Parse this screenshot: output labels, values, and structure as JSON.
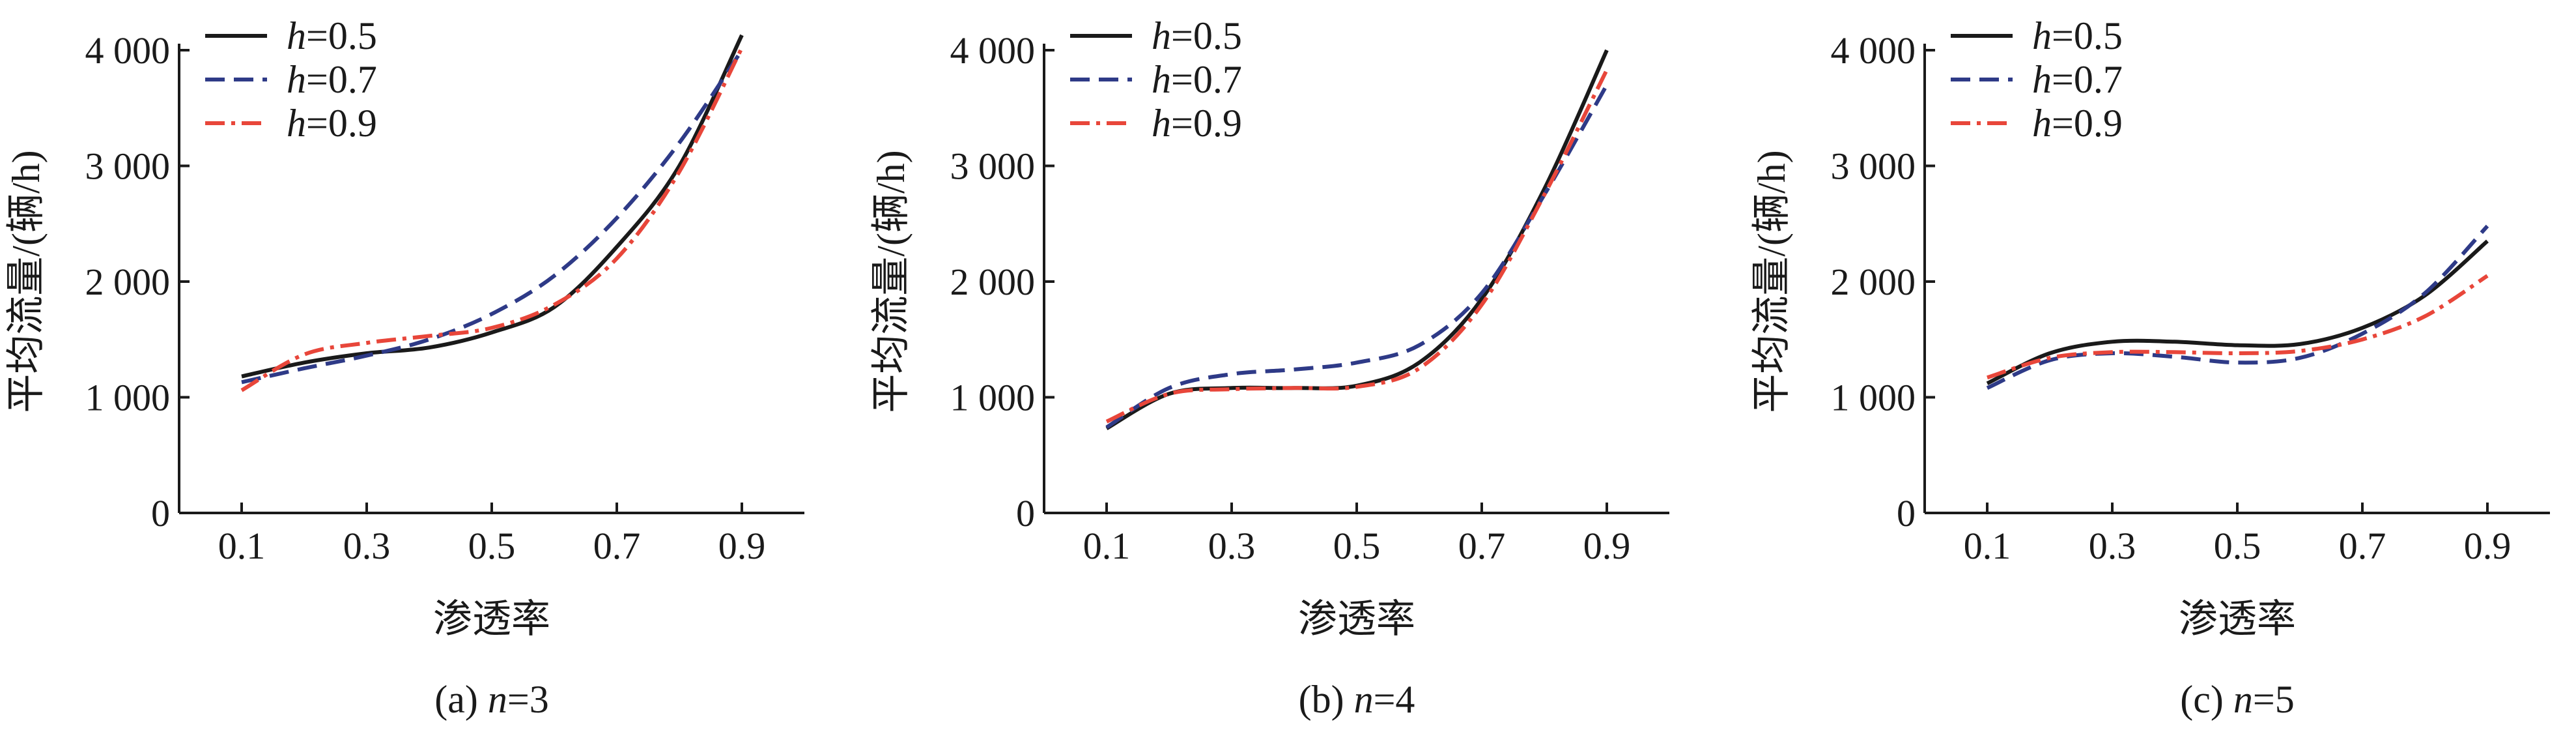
{
  "chart_data": [
    {
      "type": "line",
      "caption_prefix": "(a) ",
      "caption_var": "n",
      "caption_rest": "=3",
      "xlabel": "渗透率",
      "ylabel": "平均流量/(辆/h)",
      "xlim": [
        0.0,
        1.0
      ],
      "ylim": [
        0,
        4000
      ],
      "x_ticks": [
        0.1,
        0.3,
        0.5,
        0.7,
        0.9
      ],
      "x_tick_labels": [
        "0.1",
        "0.3",
        "0.5",
        "0.7",
        "0.9"
      ],
      "y_ticks": [
        0,
        1000,
        2000,
        3000,
        4000
      ],
      "y_tick_labels": [
        "0",
        "1 000",
        "2 000",
        "3 000",
        "4 000"
      ],
      "x": [
        0.1,
        0.2,
        0.3,
        0.4,
        0.5,
        0.6,
        0.7,
        0.8,
        0.9
      ],
      "series": [
        {
          "name_var": "h",
          "name_rest": "=0.5",
          "color": "#1a1a1a",
          "dash": "solid",
          "values": [
            1180,
            1300,
            1380,
            1430,
            1560,
            1780,
            2300,
            3000,
            4130
          ]
        },
        {
          "name_var": "h",
          "name_rest": "=0.7",
          "color": "#2e3a87",
          "dash": "dashed",
          "values": [
            1130,
            1250,
            1360,
            1500,
            1720,
            2050,
            2550,
            3200,
            4000
          ]
        },
        {
          "name_var": "h",
          "name_rest": "=0.9",
          "color": "#e8463a",
          "dash": "dashdot",
          "values": [
            1060,
            1370,
            1470,
            1530,
            1600,
            1800,
            2200,
            2950,
            4020
          ]
        }
      ]
    },
    {
      "type": "line",
      "caption_prefix": "(b) ",
      "caption_var": "n",
      "caption_rest": "=4",
      "xlabel": "渗透率",
      "ylabel": "平均流量/(辆/h)",
      "xlim": [
        0.0,
        1.0
      ],
      "ylim": [
        0,
        4000
      ],
      "x_ticks": [
        0.1,
        0.3,
        0.5,
        0.7,
        0.9
      ],
      "x_tick_labels": [
        "0.1",
        "0.3",
        "0.5",
        "0.7",
        "0.9"
      ],
      "y_ticks": [
        0,
        1000,
        2000,
        3000,
        4000
      ],
      "y_tick_labels": [
        "0",
        "1 000",
        "2 000",
        "3 000",
        "4 000"
      ],
      "x": [
        0.1,
        0.2,
        0.3,
        0.4,
        0.5,
        0.6,
        0.7,
        0.8,
        0.9
      ],
      "series": [
        {
          "name_var": "h",
          "name_rest": "=0.5",
          "color": "#1a1a1a",
          "dash": "solid",
          "values": [
            730,
            1030,
            1080,
            1080,
            1100,
            1300,
            1850,
            2800,
            4000
          ]
        },
        {
          "name_var": "h",
          "name_rest": "=0.7",
          "color": "#2e3a87",
          "dash": "dashed",
          "values": [
            740,
            1080,
            1200,
            1240,
            1300,
            1450,
            1900,
            2750,
            3700
          ]
        },
        {
          "name_var": "h",
          "name_rest": "=0.9",
          "color": "#e8463a",
          "dash": "dashdot",
          "values": [
            790,
            1030,
            1070,
            1080,
            1090,
            1250,
            1800,
            2750,
            3830
          ]
        }
      ]
    },
    {
      "type": "line",
      "caption_prefix": "(c) ",
      "caption_var": "n",
      "caption_rest": "=5",
      "xlabel": "渗透率",
      "ylabel": "平均流量/(辆/h)",
      "xlim": [
        0.0,
        1.0
      ],
      "ylim": [
        0,
        4000
      ],
      "x_ticks": [
        0.1,
        0.3,
        0.5,
        0.7,
        0.9
      ],
      "x_tick_labels": [
        "0.1",
        "0.3",
        "0.5",
        "0.7",
        "0.9"
      ],
      "y_ticks": [
        0,
        1000,
        2000,
        3000,
        4000
      ],
      "y_tick_labels": [
        "0",
        "1 000",
        "2 000",
        "3 000",
        "4 000"
      ],
      "x": [
        0.1,
        0.2,
        0.3,
        0.4,
        0.5,
        0.6,
        0.7,
        0.8,
        0.9
      ],
      "series": [
        {
          "name_var": "h",
          "name_rest": "=0.5",
          "color": "#1a1a1a",
          "dash": "solid",
          "values": [
            1120,
            1380,
            1480,
            1480,
            1450,
            1460,
            1600,
            1880,
            2350
          ]
        },
        {
          "name_var": "h",
          "name_rest": "=0.7",
          "color": "#2e3a87",
          "dash": "dashed",
          "values": [
            1080,
            1320,
            1380,
            1350,
            1300,
            1340,
            1550,
            1900,
            2480
          ]
        },
        {
          "name_var": "h",
          "name_rest": "=0.9",
          "color": "#e8463a",
          "dash": "dashdot",
          "values": [
            1170,
            1340,
            1390,
            1390,
            1380,
            1400,
            1500,
            1700,
            2050
          ]
        }
      ]
    }
  ]
}
